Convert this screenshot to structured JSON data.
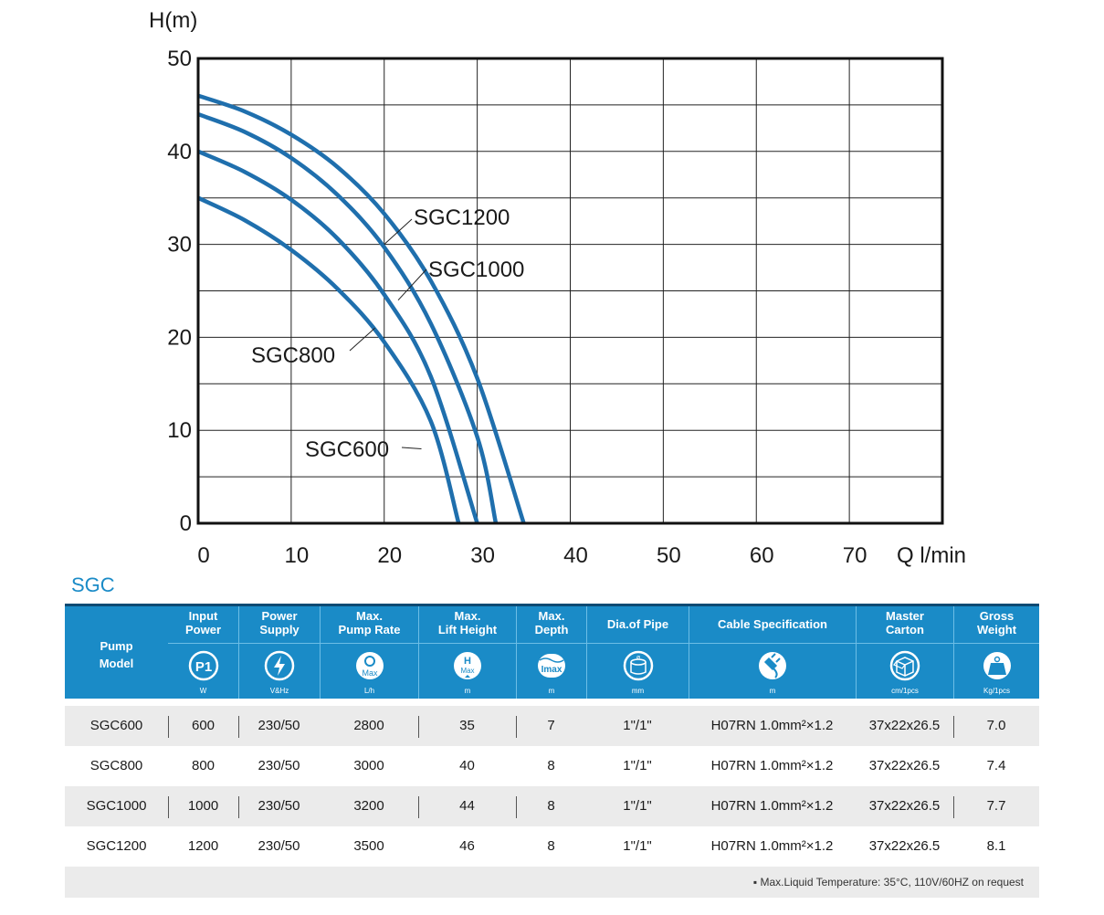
{
  "chart_data": {
    "type": "line",
    "ylabel": "H(m)",
    "xlabel": "Q l/min",
    "xlim": [
      0,
      80
    ],
    "ylim": [
      0,
      50
    ],
    "x_ticks": [
      "0",
      "10",
      "20",
      "30",
      "40",
      "50",
      "60",
      "70"
    ],
    "y_ticks": [
      "0",
      "10",
      "20",
      "30",
      "40",
      "50"
    ],
    "grid": true,
    "series": [
      {
        "name": "SGC600",
        "points": [
          [
            0,
            35
          ],
          [
            5,
            32.6
          ],
          [
            10,
            29.4
          ],
          [
            15,
            25.2
          ],
          [
            20,
            19.5
          ],
          [
            25,
            11
          ],
          [
            28,
            0
          ]
        ]
      },
      {
        "name": "SGC800",
        "points": [
          [
            0,
            40
          ],
          [
            5,
            37.8
          ],
          [
            10,
            34.8
          ],
          [
            15,
            30.6
          ],
          [
            20,
            24.6
          ],
          [
            25,
            15.8
          ],
          [
            30,
            0
          ]
        ]
      },
      {
        "name": "SGC1000",
        "points": [
          [
            0,
            44
          ],
          [
            5,
            42.1
          ],
          [
            10,
            39.3
          ],
          [
            15,
            35.3
          ],
          [
            20,
            29.7
          ],
          [
            25,
            21.5
          ],
          [
            30,
            9.3
          ],
          [
            32,
            0
          ]
        ]
      },
      {
        "name": "SGC1200",
        "points": [
          [
            0,
            46
          ],
          [
            5,
            44.3
          ],
          [
            10,
            41.8
          ],
          [
            15,
            38.3
          ],
          [
            20,
            33.3
          ],
          [
            25,
            26.1
          ],
          [
            30,
            15.6
          ],
          [
            35,
            0
          ]
        ]
      }
    ]
  },
  "series_title": "SGC",
  "table": {
    "model_header": "Pump\nModel",
    "columns": [
      {
        "label": "Input\nPower",
        "unit": "W",
        "icon": "p1-power-icon"
      },
      {
        "label": "Power\nSupply",
        "unit": "V&Hz",
        "icon": "lightning-icon"
      },
      {
        "label": "Max.\nPump Rate",
        "unit": "L/h",
        "icon": "flow-rate-icon"
      },
      {
        "label": "Max.\nLift Height",
        "unit": "m",
        "icon": "lift-height-icon"
      },
      {
        "label": "Max.\nDepth",
        "unit": "m",
        "icon": "depth-icon"
      },
      {
        "label": "Dia.of Pipe",
        "unit": "mm",
        "icon": "pipe-diameter-icon"
      },
      {
        "label": "Cable Specification",
        "unit": "m",
        "icon": "plug-icon"
      },
      {
        "label": "Master\nCarton",
        "unit": "cm/1pcs",
        "icon": "carton-icon"
      },
      {
        "label": "Gross\nWeight",
        "unit": "Kg/1pcs",
        "icon": "weight-icon"
      }
    ],
    "rows": [
      [
        "SGC600",
        "600",
        "230/50",
        "2800",
        "35",
        "7",
        "1\"/1\"",
        "H07RN 1.0mm²×1.2",
        "37x22x26.5",
        "7.0"
      ],
      [
        "SGC800",
        "800",
        "230/50",
        "3000",
        "40",
        "8",
        "1\"/1\"",
        "H07RN 1.0mm²×1.2",
        "37x22x26.5",
        "7.4"
      ],
      [
        "SGC1000",
        "1000",
        "230/50",
        "3200",
        "44",
        "8",
        "1\"/1\"",
        "H07RN 1.0mm²×1.2",
        "37x22x26.5",
        "7.7"
      ],
      [
        "SGC1200",
        "1200",
        "230/50",
        "3500",
        "46",
        "8",
        "1\"/1\"",
        "H07RN 1.0mm²×1.2",
        "37x22x26.5",
        "8.1"
      ]
    ],
    "footnote": "Max.Liquid Temperature: 35°C, 110V/60HZ on request"
  },
  "colors": {
    "curve": "#1f6fad",
    "header": "#1a8bc7",
    "header_border": "#0d4a73",
    "row_shade": "#ebebeb"
  }
}
